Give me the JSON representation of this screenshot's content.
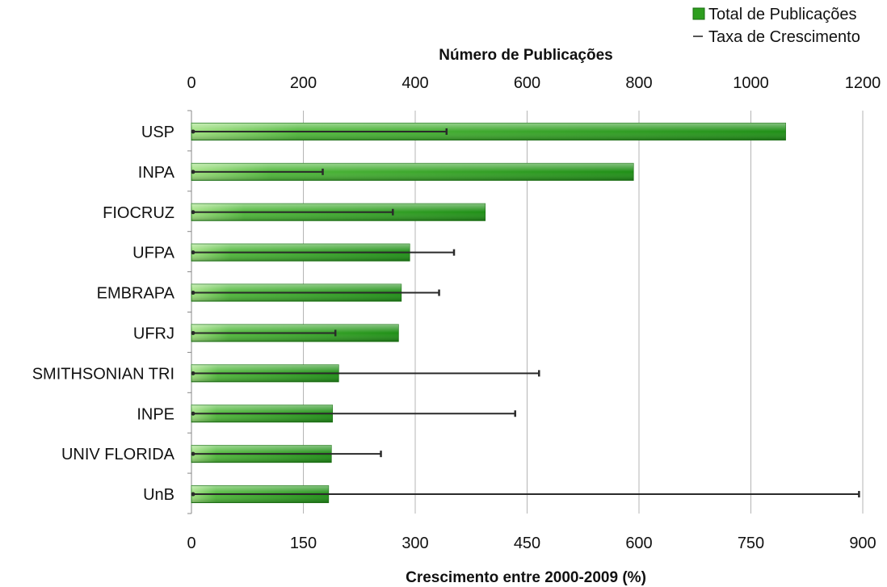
{
  "chart_data": {
    "type": "bar",
    "orientation": "horizontal",
    "categories": [
      "USP",
      "INPA",
      "FIOCRUZ",
      "UFPA",
      "EMBRAPA",
      "UFRJ",
      "SMITHSONIAN TRI",
      "INPE",
      "UNIV FLORIDA",
      "UnB"
    ],
    "series": [
      {
        "name": "Total de Publicações",
        "axis": "top",
        "kind": "bar",
        "color": "#2e9e1f",
        "values": [
          1062,
          790,
          525,
          390,
          375,
          370,
          263,
          252,
          250,
          245
        ]
      },
      {
        "name": "Taxa de Crescimento",
        "axis": "bottom",
        "kind": "line-segment",
        "color": "#333333",
        "values": [
          342,
          176,
          270,
          352,
          332,
          193,
          466,
          434,
          254,
          895
        ]
      }
    ],
    "top_axis": {
      "title": "Número de Publicações",
      "range": [
        0,
        1200
      ],
      "ticks": [
        "0",
        "200",
        "400",
        "600",
        "800",
        "1000",
        "1200"
      ]
    },
    "bottom_axis": {
      "title": "Crescimento entre 2000-2009 (%)",
      "range": [
        0,
        900
      ],
      "ticks": [
        "0",
        "150",
        "300",
        "450",
        "600",
        "750",
        "900"
      ]
    },
    "grid": true,
    "legend_position": "top-right"
  }
}
